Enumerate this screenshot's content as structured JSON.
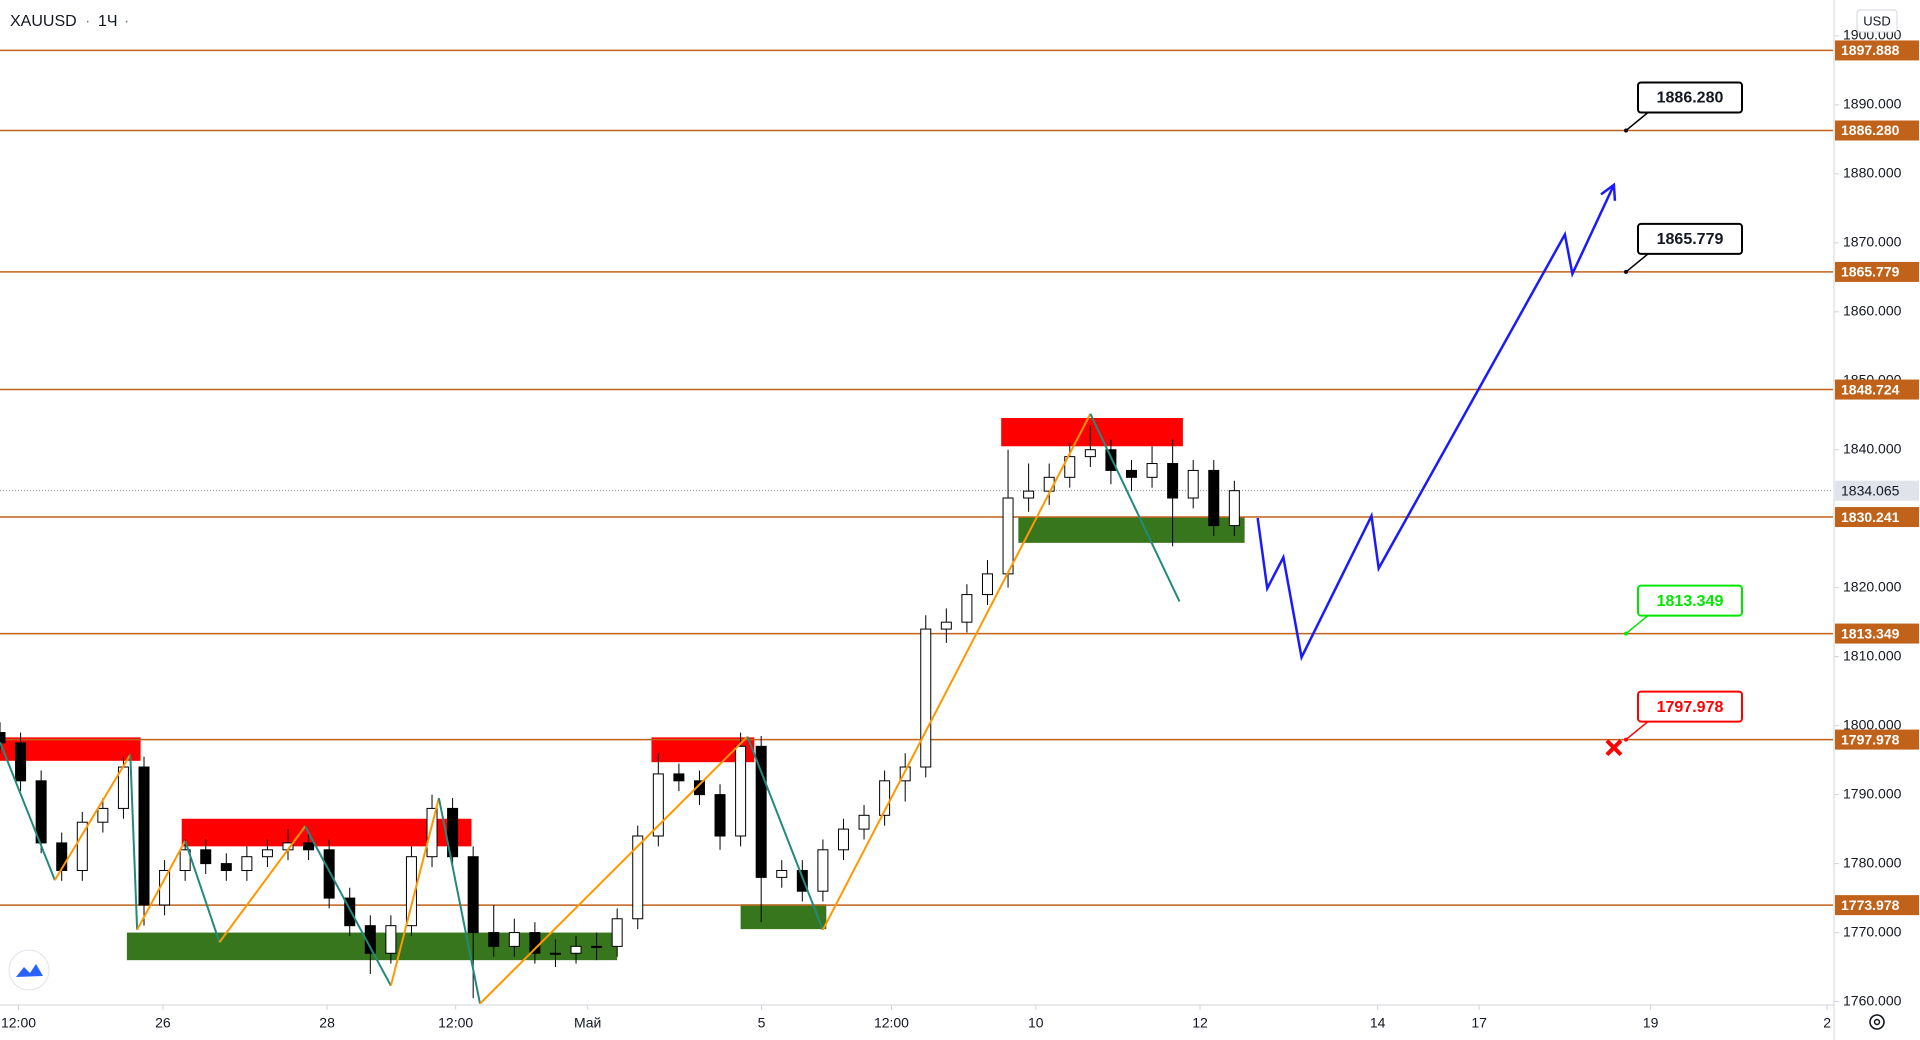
{
  "chart_data": {
    "type": "candlestick",
    "symbol": "XAUUSD",
    "interval": "1Ч",
    "currency": "USD",
    "candle_color_up": "#ffffff",
    "candle_color_down": "#000000",
    "x": [
      0,
      6,
      12,
      18,
      24,
      30,
      36,
      42,
      48,
      54,
      60,
      66,
      72,
      78,
      84,
      90,
      96,
      102,
      108,
      114,
      120,
      126,
      132,
      138,
      144,
      150,
      156,
      162,
      168,
      174,
      180,
      186,
      192,
      198,
      204,
      210,
      216,
      222,
      228,
      234,
      240,
      246,
      252,
      258,
      264,
      270,
      276,
      282,
      288,
      294,
      300,
      306,
      312,
      318,
      324,
      330,
      336,
      342,
      348,
      354,
      360
    ],
    "open": [
      1799,
      1797.5,
      1792,
      1783,
      1779,
      1786,
      1788,
      1794,
      1774,
      1779,
      1782,
      1780,
      1779,
      1781,
      1782,
      1783,
      1782,
      1775,
      1771,
      1767,
      1771,
      1781,
      1788,
      1781,
      1770,
      1768,
      1770,
      1767,
      1767,
      1768,
      1768,
      1772,
      1784,
      1793,
      1792,
      1790,
      1784,
      1797,
      1778,
      1779,
      1776,
      1782,
      1785,
      1787,
      1792,
      1794,
      1814,
      1815,
      1819,
      1822,
      1833,
      1834,
      1836,
      1839,
      1840,
      1837,
      1836,
      1838,
      1833,
      1837,
      1829
    ],
    "high": [
      1800.5,
      1799,
      1793.5,
      1784.5,
      1787.5,
      1789.5,
      1795.5,
      1795.5,
      1780.5,
      1783.5,
      1783.5,
      1781.5,
      1782.5,
      1783.5,
      1785,
      1784.5,
      1783.5,
      1776.5,
      1772.5,
      1772.5,
      1782.5,
      1790,
      1789.5,
      1782.5,
      1774,
      1772,
      1771.5,
      1769,
      1769.5,
      1770,
      1773.5,
      1785.5,
      1796,
      1794.5,
      1793.5,
      1791.5,
      1799,
      1798.5,
      1780.5,
      1780.5,
      1783.5,
      1786.5,
      1788.5,
      1793.5,
      1796,
      1816,
      1817,
      1820.5,
      1824,
      1840,
      1838,
      1838,
      1841,
      1843.5,
      1841.5,
      1838.5,
      1840.5,
      1841.5,
      1838.5,
      1838.5,
      1835.5
    ],
    "low": [
      1796,
      1790.5,
      1781.5,
      1777.5,
      1777.5,
      1784.5,
      1786.5,
      1771,
      1772.5,
      1777.5,
      1778.5,
      1777.5,
      1777.5,
      1779.5,
      1780.5,
      1780.5,
      1773.5,
      1769.5,
      1764,
      1765.5,
      1769.5,
      1779.5,
      1779.5,
      1760.5,
      1766.5,
      1766.5,
      1765.5,
      1765,
      1765.5,
      1766,
      1766.5,
      1770.5,
      1782.5,
      1790.5,
      1788.5,
      1782,
      1782.5,
      1771.5,
      1776.5,
      1774.5,
      1774.5,
      1780.5,
      1783.5,
      1785.5,
      1789,
      1792.5,
      1812,
      1813.5,
      1817.5,
      1820,
      1831,
      1832,
      1834.5,
      1837.5,
      1835,
      1834,
      1834.5,
      1826,
      1831.5,
      1827.5,
      1827.5
    ],
    "close": [
      1797.5,
      1792,
      1783,
      1779,
      1786,
      1788,
      1794,
      1774,
      1779,
      1782,
      1780,
      1779,
      1781,
      1782,
      1783,
      1782,
      1775,
      1771,
      1767,
      1771,
      1781,
      1788,
      1781,
      1770,
      1768,
      1770,
      1767,
      1767,
      1768,
      1768,
      1772,
      1784,
      1793,
      1792,
      1790,
      1784,
      1797,
      1778,
      1779,
      1776,
      1782,
      1785,
      1787,
      1792,
      1794,
      1814,
      1815,
      1819,
      1822,
      1833,
      1834,
      1836,
      1839,
      1840,
      1837,
      1836,
      1838,
      1833,
      1837,
      1829,
      1834.065
    ],
    "last_price": 1834.065,
    "xlim": [
      0,
      534.6
    ],
    "xticks": [
      {
        "value": 5.4,
        "label": "12:00"
      },
      {
        "value": 47.5,
        "label": "26"
      },
      {
        "value": 95.4,
        "label": "28"
      },
      {
        "value": 132.9,
        "label": "12:00"
      },
      {
        "value": 171.4,
        "label": "Май"
      },
      {
        "value": 222.1,
        "label": "5"
      },
      {
        "value": 260,
        "label": "12:00"
      },
      {
        "value": 302.1,
        "label": "10"
      },
      {
        "value": 350,
        "label": "12"
      },
      {
        "value": 401.8,
        "label": "14"
      },
      {
        "value": 431.4,
        "label": "17"
      },
      {
        "value": 481.4,
        "label": "19"
      },
      {
        "value": 532.9,
        "label": "2"
      }
    ],
    "ylim": [
      1759.5,
      1905.2
    ],
    "yticks": [
      {
        "value": 1760,
        "label": "1760.000"
      },
      {
        "value": 1770,
        "label": "1770.000"
      },
      {
        "value": 1780,
        "label": "1780.000"
      },
      {
        "value": 1790,
        "label": "1790.000"
      },
      {
        "value": 1800,
        "label": "1800.000"
      },
      {
        "value": 1810,
        "label": "1810.000"
      },
      {
        "value": 1820,
        "label": "1820.000"
      },
      {
        "value": 1830,
        "label": "1830.000"
      },
      {
        "value": 1840,
        "label": "1840.000"
      },
      {
        "value": 1850,
        "label": "1850.000"
      },
      {
        "value": 1860,
        "label": "1860.000"
      },
      {
        "value": 1870,
        "label": "1870.000"
      },
      {
        "value": 1880,
        "label": "1880.000"
      },
      {
        "value": 1890,
        "label": "1890.000"
      },
      {
        "value": 1900,
        "label": "1900.000"
      }
    ],
    "level_color": "#c0621a",
    "levels": [
      1897.888,
      {
        "value": 1886.28,
        "label": "1886.280"
      },
      1865.779,
      1848.724,
      1830.241,
      1813.349,
      1797.978,
      1773.978
    ],
    "zones": [
      {
        "color": "#ff0000",
        "x": [
          0,
          41
        ],
        "range": [
          1794.9,
          1798.3
        ]
      },
      {
        "color": "#ff0000",
        "x": [
          53,
          137.5
        ],
        "range": [
          1782.5,
          1786.5
        ]
      },
      {
        "color": "#38761d",
        "x": [
          37,
          180
        ],
        "range": [
          1766,
          1770
        ]
      },
      {
        "color": "#ff0000",
        "x": [
          190,
          220
        ],
        "range": [
          1794.7,
          1798.3
        ]
      },
      {
        "color": "#38761d",
        "x": [
          216,
          241
        ],
        "range": [
          1770.5,
          1774.1
        ]
      },
      {
        "color": "#ff0000",
        "x": [
          292,
          345
        ],
        "range": [
          1840.5,
          1844.6
        ]
      },
      {
        "color": "#38761d",
        "x": [
          297,
          363
        ],
        "range": [
          1826.5,
          1830.3
        ]
      }
    ],
    "zigzag": {
      "color_up": "#ff9800",
      "color_down": "#22897f",
      "x": [
        0,
        16,
        38,
        40,
        54,
        64,
        89,
        114,
        128,
        140,
        218,
        240,
        318,
        344
      ],
      "y": [
        1797.6,
        1777.6,
        1795.8,
        1770.4,
        1783.3,
        1768.6,
        1785.4,
        1762.3,
        1789.5,
        1759.7,
        1798.4,
        1770.4,
        1845.2,
        1818
      ]
    },
    "forecast": {
      "color": "#1a1aff",
      "x": [
        366.8,
        369.6,
        374.3,
        379.6,
        400,
        402.1,
        456.4,
        458.6,
        470.7
      ],
      "y": [
        1830.1,
        1819.9,
        1824.4,
        1809.9,
        1830.4,
        1822.8,
        1871.2,
        1865.5,
        1878.4
      ]
    },
    "invalid_marker": {
      "x": 470.7,
      "y": 1796.8,
      "color": "#ff0000"
    },
    "annotations": [
      {
        "value": 1886.28,
        "label": "1886.280",
        "color": "#000000"
      },
      {
        "value": 1865.779,
        "color": "#000000"
      },
      {
        "value": 1813.349,
        "color": "#00e600"
      },
      {
        "value": 1797.978,
        "color": "#ff0000"
      }
    ]
  }
}
